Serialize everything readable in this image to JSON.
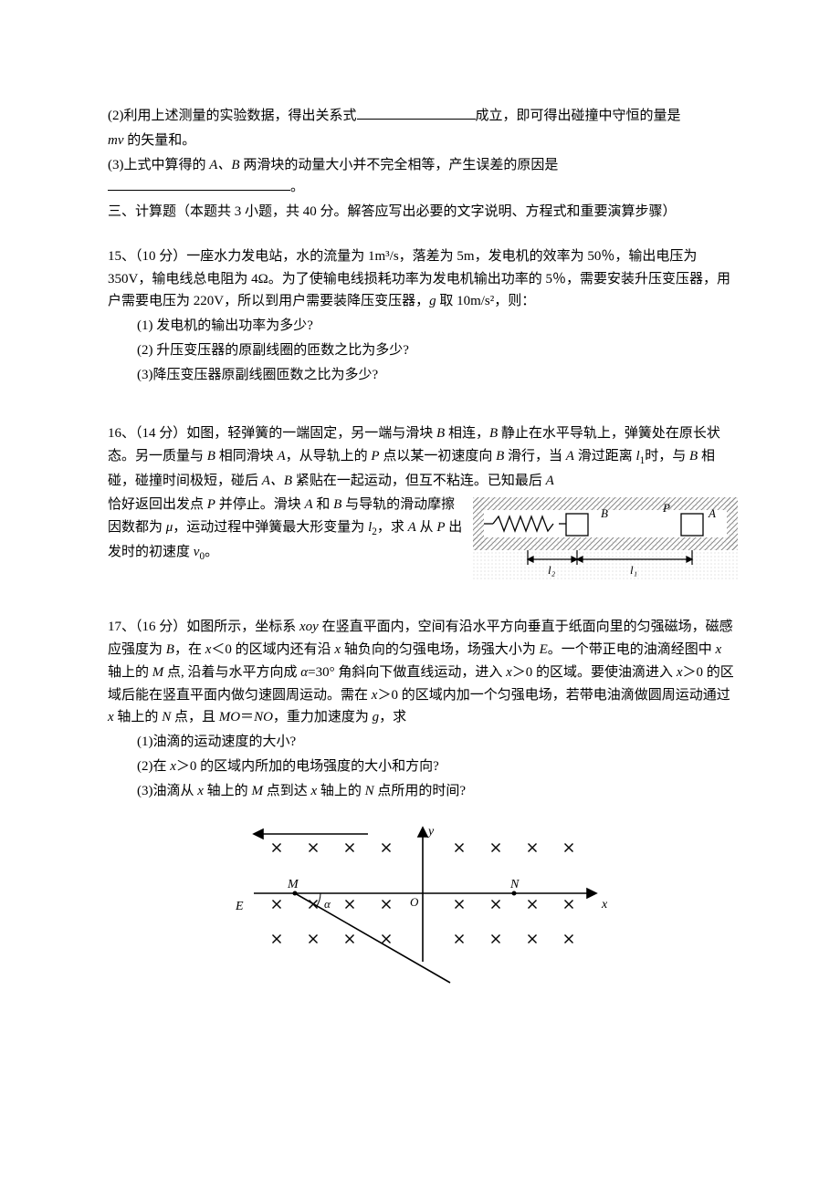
{
  "q14": {
    "part2_prefix": "(2)利用上述测量的实验数据，得出关系式",
    "part2_suffix": "成立，即可得出碰撞中守恒的量是",
    "part2_line2_pre": "mv",
    "part2_line2_post": " 的矢量和。",
    "part3_prefix": "(3)上式中算得的 ",
    "part3_ab": "A、B",
    "part3_mid": " 两滑块的动量大小并不完全相等，产生误差的原因是",
    "part3_end": "。"
  },
  "section3_title": "三、计算题（本题共 3 小题，共 40 分。解答应写出必要的文字说明、方程式和重要演算步骤）",
  "q15": {
    "stem1": "15、（10 分）一座水力发电站，水的流量为 1m³/s，落差为 5m，发电机的效率为 50％，输出电压为 350V，输电线总电阻为 4Ω。为了使输电线损耗功率为发电机输出功率的 5％，需要安装升压变压器，用户需要电压为 220V，所以到用户需要装降压变压器，",
    "stem1_g": "g",
    "stem1_end": " 取 10m/s²，则：",
    "sub1": "(1) 发电机的输出功率为多少?",
    "sub2": "(2) 升压变压器的原副线圈的匝数之比为多少?",
    "sub3": "(3)降压变压器原副线圈匝数之比为多少?"
  },
  "q16": {
    "stem_a": "16、（14 分）如图，轻弹簧的一端固定，另一端与滑块 ",
    "B1": "B",
    "stem_b": " 相连，",
    "B2": "B",
    "stem_c": " 静止在水平导轨上，弹簧处在原长状态。另一质量与 ",
    "B3": "B",
    "stem_d": " 相同滑块 ",
    "A1": "A",
    "stem_e": "，从导轨上的 ",
    "P1": "P",
    "stem_f": " 点以某一初速度向 ",
    "B4": "B",
    "stem_g": " 滑行，当 ",
    "A2": "A",
    "stem_h": " 滑过距离 ",
    "l1": "l",
    "l1sub": "1",
    "stem_i": "时，与 ",
    "B5": "B",
    "stem_j": " 相碰，碰撞时间极短，碰后 ",
    "A3": "A、B",
    "stem_k": " 紧贴在一起运动，但互不粘连。已知最后 ",
    "A4": "A",
    "stem_l": " 恰好返回出发点 ",
    "P2": "P",
    "stem_m": " 并停止。滑块 ",
    "A5": "A",
    "stem_n": " 和 ",
    "B6": "B",
    "stem_o": " 与导轨的滑动摩擦因数都为 ",
    "mu": "μ",
    "stem_p": "，运动过程中弹簧最大形变量为 ",
    "l2": "l",
    "l2sub": "2",
    "stem_q": "，求 ",
    "A6": "A",
    "stem_r": " 从 ",
    "P3": "P",
    "stem_s": " 出发时的初速度 ",
    "v0": "v",
    "v0sub": "0",
    "stem_t": "。",
    "fig": {
      "label_B": "B",
      "label_P": "P",
      "label_A": "A",
      "label_l2": "l₂",
      "label_l1": "l₁"
    }
  },
  "q17": {
    "stem_a": "17、（16 分）如图所示，坐标系 ",
    "xoy": "xoy",
    "stem_b": " 在竖直平面内，空间有沿水平方向垂直于纸面向里的匀强磁场，磁感应强度为 ",
    "Bsym": "B",
    "stem_c": "，在 ",
    "x": "x",
    "stem_d": "＜0 的区域内还有沿 ",
    "stem_e": " 轴负向的匀强电场，场强大小为 ",
    "Esym": "E",
    "stem_f": "。一个带正电的油滴经图中 ",
    "stem_g": " 轴上的 ",
    "Msym": "M",
    "stem_h": " 点, 沿着与水平方向成 ",
    "alpha": "α",
    "stem_i": "=30° 角斜向下做直线运动，进入 ",
    "stem_j": "＞0 的区域。要使油滴进入 ",
    "stem_k": "＞0 的区域后能在竖直平面内做匀速圆周运动。需在 ",
    "stem_l": "＞0 的区域内加一个匀强电场，若带电油滴做圆周运动通过 ",
    "stem_m": " 轴上的 ",
    "Nsym": "N",
    "stem_n": " 点，且 ",
    "MO": "MO",
    "eq": "＝",
    "NO": "NO",
    "stem_o": "，重力加速度为 ",
    "gsym": "g",
    "stem_p": "，求",
    "sub1": "(1)油滴的运动速度的大小?",
    "sub2_a": "(2)在 ",
    "sub2_b": "＞0 的区域内所加的电场强度的大小和方向?",
    "sub3_a": "(3)油滴从 ",
    "sub3_b": " 轴上的 ",
    "sub3_c": " 点到达 ",
    "sub3_d": " 轴上的 ",
    "sub3_e": " 点所用的时间?",
    "fig": {
      "y": "y",
      "x": "x",
      "M": "M",
      "N": "N",
      "O": "O",
      "E": "E",
      "alpha": "α",
      "cross_cols": [
        -160,
        -120,
        -80,
        -40,
        40,
        80,
        120,
        160
      ],
      "cross_rows": [
        -50,
        0,
        50
      ],
      "axis_color": "#000000",
      "cross_color": "#000000",
      "line_width": 1.4
    }
  }
}
